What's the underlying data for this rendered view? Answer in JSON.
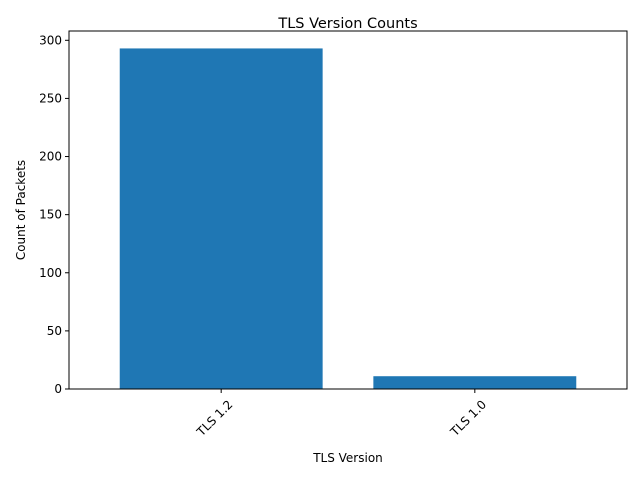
{
  "chart_data": {
    "type": "bar",
    "title": "TLS Version Counts",
    "xlabel": "TLS Version",
    "ylabel": "Count of Packets",
    "categories": [
      "TLS 1.2",
      "TLS 1.0"
    ],
    "values": [
      293,
      11
    ],
    "ylim": [
      0,
      308
    ],
    "yticks": [
      0,
      50,
      100,
      150,
      200,
      250,
      300
    ],
    "bar_color": "#1f77b4",
    "xtick_rotation_deg": 45,
    "grid": false,
    "legend": "none"
  }
}
